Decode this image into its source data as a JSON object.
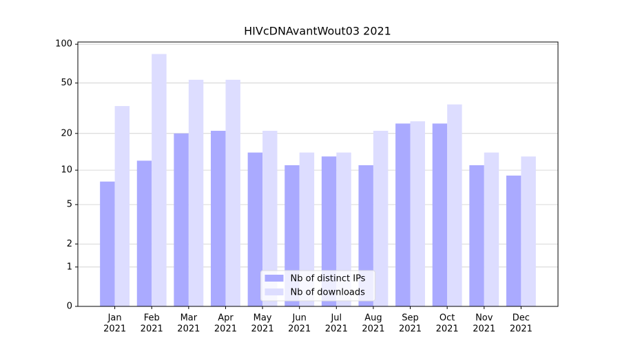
{
  "chart_data": {
    "type": "bar",
    "title": "HIVcDNAvantWout03 2021",
    "categories": [
      [
        "Jan",
        "2021"
      ],
      [
        "Feb",
        "2021"
      ],
      [
        "Mar",
        "2021"
      ],
      [
        "Apr",
        "2021"
      ],
      [
        "May",
        "2021"
      ],
      [
        "Jun",
        "2021"
      ],
      [
        "Jul",
        "2021"
      ],
      [
        "Aug",
        "2021"
      ],
      [
        "Sep",
        "2021"
      ],
      [
        "Oct",
        "2021"
      ],
      [
        "Nov",
        "2021"
      ],
      [
        "Dec",
        "2021"
      ]
    ],
    "series": [
      {
        "name": "Nb of distinct IPs",
        "color": "#aaaaff",
        "values": [
          8,
          12,
          20,
          21,
          14,
          11,
          13,
          11,
          24,
          24,
          11,
          9
        ]
      },
      {
        "name": "Nb of downloads",
        "color": "#ddddff",
        "values": [
          33,
          84,
          53,
          53,
          21,
          14,
          14,
          21,
          25,
          34,
          14,
          13
        ]
      }
    ],
    "yscale": "log1p",
    "ylim": [
      0,
      104
    ],
    "yticks": [
      0,
      1,
      2,
      5,
      10,
      20,
      50,
      100
    ],
    "grid": true,
    "legend": "lower center"
  }
}
